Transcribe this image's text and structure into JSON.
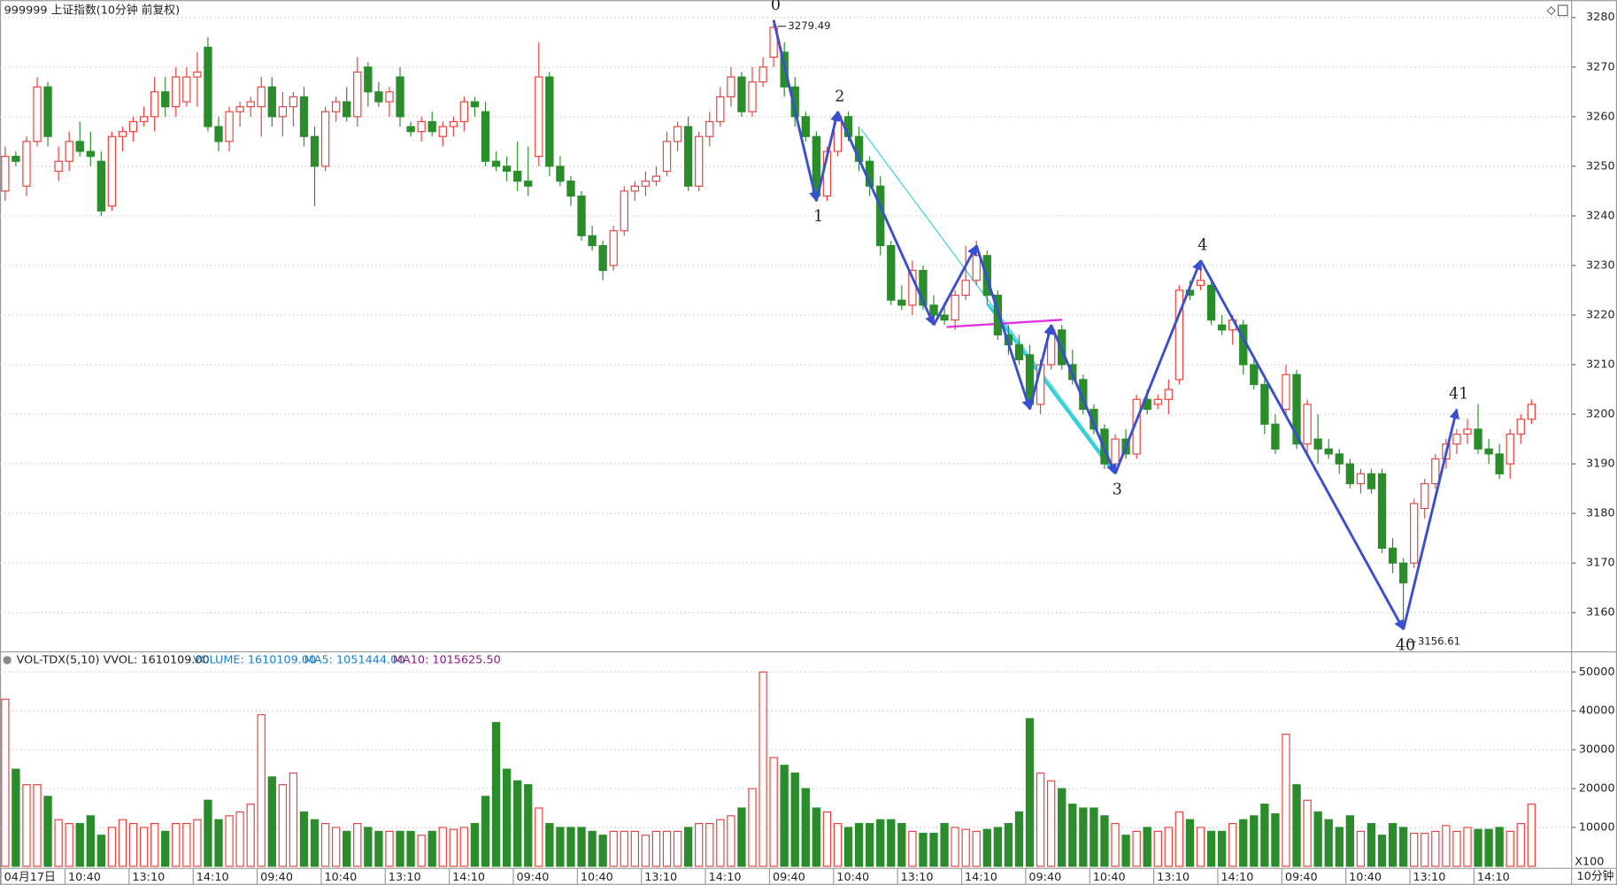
{
  "header": {
    "title": "999999 上证指数(10分钟 前复权)",
    "volume_title": "VOL-TDX(5,10)  VVOL: 1610109.00",
    "volume_value": "VOLUME: 1610109.00",
    "ma5": "MA5: 1051444.00",
    "ma10": "MA10: 1015625.50",
    "unit": "X100",
    "period": "10分钟"
  },
  "chart_data": [
    {
      "type": "candlestick",
      "up_color": "#e8403a",
      "down_color": "#2b8c2b",
      "grid": true,
      "ylim": [
        3152.1,
        3283.5
      ],
      "yticks": [
        3160,
        3170,
        3180,
        3190,
        3200,
        3210,
        3220,
        3230,
        3240,
        3250,
        3260,
        3270,
        3280
      ],
      "ohlc": [
        [
          3245,
          3254,
          3243,
          3252
        ],
        [
          3252,
          3253,
          3250,
          3251
        ],
        [
          3246,
          3256,
          3244,
          3255
        ],
        [
          3255,
          3268,
          3254,
          3266
        ],
        [
          3266,
          3267,
          3254,
          3256
        ],
        [
          3249,
          3254,
          3247,
          3251
        ],
        [
          3251,
          3257,
          3249,
          3255
        ],
        [
          3255,
          3259,
          3252,
          3253
        ],
        [
          3253,
          3257,
          3250,
          3252
        ],
        [
          3251,
          3253,
          3240,
          3241
        ],
        [
          3242,
          3257,
          3241,
          3256
        ],
        [
          3256,
          3258,
          3253,
          3257
        ],
        [
          3257,
          3260,
          3255,
          3259
        ],
        [
          3259,
          3262,
          3258,
          3260
        ],
        [
          3260,
          3268,
          3257,
          3265
        ],
        [
          3265,
          3268,
          3260,
          3262
        ],
        [
          3262,
          3270,
          3260,
          3268
        ],
        [
          3263,
          3270,
          3262,
          3268
        ],
        [
          3268,
          3273,
          3262,
          3269
        ],
        [
          3274,
          3276,
          3257,
          3258
        ],
        [
          3258,
          3260,
          3253,
          3255
        ],
        [
          3255,
          3262,
          3253,
          3261
        ],
        [
          3261,
          3263,
          3258,
          3262
        ],
        [
          3262,
          3264,
          3260,
          3263
        ],
        [
          3262,
          3268,
          3256,
          3266
        ],
        [
          3266,
          3268,
          3258,
          3260
        ],
        [
          3260,
          3265,
          3256,
          3262
        ],
        [
          3262,
          3265,
          3258,
          3264
        ],
        [
          3264,
          3266,
          3254,
          3256
        ],
        [
          3256,
          3258,
          3242,
          3250
        ],
        [
          3250,
          3262,
          3249,
          3261
        ],
        [
          3261,
          3264,
          3259,
          3263
        ],
        [
          3263,
          3266,
          3259,
          3260
        ],
        [
          3260,
          3272,
          3258,
          3269
        ],
        [
          3270,
          3271,
          3262,
          3265
        ],
        [
          3265,
          3267,
          3262,
          3263
        ],
        [
          3263,
          3266,
          3260,
          3265
        ],
        [
          3268,
          3270,
          3258,
          3260
        ],
        [
          3258,
          3259,
          3256,
          3257
        ],
        [
          3257,
          3260,
          3255,
          3259
        ],
        [
          3259,
          3261,
          3256,
          3257
        ],
        [
          3256,
          3259,
          3254,
          3258
        ],
        [
          3258,
          3260,
          3256,
          3259
        ],
        [
          3259,
          3264,
          3257,
          3263
        ],
        [
          3263,
          3264,
          3260,
          3262
        ],
        [
          3261,
          3263,
          3250,
          3251
        ],
        [
          3251,
          3253,
          3249,
          3250
        ],
        [
          3250,
          3252,
          3247,
          3249
        ],
        [
          3249,
          3255,
          3245,
          3247
        ],
        [
          3247,
          3254,
          3244,
          3246
        ],
        [
          3252,
          3275,
          3250,
          3268
        ],
        [
          3268,
          3269,
          3248,
          3250
        ],
        [
          3250,
          3252,
          3246,
          3247
        ],
        [
          3247,
          3248,
          3242,
          3244
        ],
        [
          3244,
          3245,
          3235,
          3236
        ],
        [
          3236,
          3238,
          3233,
          3234
        ],
        [
          3234,
          3235,
          3227,
          3229
        ],
        [
          3230,
          3238,
          3229,
          3237
        ],
        [
          3237,
          3246,
          3236,
          3245
        ],
        [
          3245,
          3247,
          3243,
          3246
        ],
        [
          3246,
          3249,
          3244,
          3247
        ],
        [
          3247,
          3250,
          3246,
          3248
        ],
        [
          3249,
          3257,
          3248,
          3255
        ],
        [
          3255,
          3259,
          3253,
          3258
        ],
        [
          3258,
          3260,
          3245,
          3246
        ],
        [
          3246,
          3257,
          3245,
          3256
        ],
        [
          3256,
          3261,
          3254,
          3259
        ],
        [
          3259,
          3266,
          3258,
          3264
        ],
        [
          3264,
          3270,
          3262,
          3268
        ],
        [
          3268,
          3269,
          3260,
          3261
        ],
        [
          3261,
          3270,
          3260,
          3267
        ],
        [
          3267,
          3272,
          3266,
          3270
        ],
        [
          3272,
          3279.49,
          3270,
          3278
        ],
        [
          3273,
          3275,
          3264,
          3266
        ],
        [
          3266,
          3268,
          3258,
          3260
        ],
        [
          3260,
          3261,
          3255,
          3256
        ],
        [
          3256,
          3257,
          3243,
          3244
        ],
        [
          3244,
          3254,
          3243,
          3253
        ],
        [
          3253,
          3261,
          3252,
          3260
        ],
        [
          3260,
          3261,
          3255,
          3256
        ],
        [
          3256,
          3258,
          3249,
          3251
        ],
        [
          3251,
          3252,
          3244,
          3246
        ],
        [
          3246,
          3248,
          3232,
          3234
        ],
        [
          3234,
          3235,
          3222,
          3223
        ],
        [
          3223,
          3226,
          3221,
          3222
        ],
        [
          3222,
          3231,
          3220,
          3229
        ],
        [
          3229,
          3230,
          3221,
          3222
        ],
        [
          3222,
          3224,
          3219,
          3220
        ],
        [
          3220,
          3222,
          3218,
          3219
        ],
        [
          3219,
          3225,
          3217,
          3224
        ],
        [
          3224,
          3234,
          3223,
          3227
        ],
        [
          3227,
          3235,
          3226,
          3232
        ],
        [
          3232,
          3233,
          3222,
          3224
        ],
        [
          3224,
          3225,
          3215,
          3216
        ],
        [
          3216,
          3218,
          3212,
          3214
        ],
        [
          3214,
          3216,
          3210,
          3211
        ],
        [
          3212,
          3214,
          3201,
          3202
        ],
        [
          3202,
          3211,
          3200,
          3210
        ],
        [
          3210,
          3218,
          3209,
          3217
        ],
        [
          3217,
          3218,
          3209,
          3210
        ],
        [
          3210,
          3213,
          3206,
          3207
        ],
        [
          3207,
          3208,
          3200,
          3201
        ],
        [
          3201,
          3202,
          3196,
          3197
        ],
        [
          3197,
          3198,
          3189,
          3190
        ],
        [
          3190,
          3196,
          3188,
          3195
        ],
        [
          3195,
          3197,
          3191,
          3192
        ],
        [
          3192,
          3204,
          3191,
          3203
        ],
        [
          3203,
          3205,
          3200,
          3201
        ],
        [
          3202,
          3204,
          3201,
          3203
        ],
        [
          3203,
          3207,
          3200,
          3205
        ],
        [
          3207,
          3226,
          3206,
          3225
        ],
        [
          3225,
          3227,
          3223,
          3224
        ],
        [
          3226,
          3231,
          3225,
          3227
        ],
        [
          3226,
          3227,
          3218,
          3219
        ],
        [
          3218,
          3220,
          3216,
          3217
        ],
        [
          3217,
          3220,
          3214,
          3219
        ],
        [
          3218,
          3219,
          3208,
          3210
        ],
        [
          3210,
          3211,
          3205,
          3206
        ],
        [
          3206,
          3207,
          3196,
          3198
        ],
        [
          3198,
          3200,
          3192,
          3193
        ],
        [
          3201,
          3210,
          3200,
          3208
        ],
        [
          3208,
          3209,
          3193,
          3194
        ],
        [
          3194,
          3203,
          3192,
          3202
        ],
        [
          3195,
          3200,
          3190,
          3193
        ],
        [
          3193,
          3195,
          3191,
          3192
        ],
        [
          3192,
          3193,
          3188,
          3190
        ],
        [
          3190,
          3191,
          3185,
          3186
        ],
        [
          3186,
          3189,
          3184,
          3188
        ],
        [
          3188,
          3189,
          3184,
          3185
        ],
        [
          3188,
          3189,
          3172,
          3173
        ],
        [
          3173,
          3175,
          3168,
          3170
        ],
        [
          3170,
          3171,
          3156.61,
          3166
        ],
        [
          3170,
          3183,
          3169,
          3182
        ],
        [
          3181,
          3187,
          3179,
          3186
        ],
        [
          3186,
          3192,
          3185,
          3191
        ],
        [
          3191,
          3195,
          3189,
          3194
        ],
        [
          3194,
          3197,
          3192,
          3196
        ],
        [
          3196,
          3199,
          3194,
          3197
        ],
        [
          3197,
          3202,
          3192,
          3193
        ],
        [
          3193,
          3195,
          3190,
          3192
        ],
        [
          3192,
          3194,
          3187,
          3188
        ],
        [
          3190,
          3197,
          3187,
          3196
        ],
        [
          3196,
          3200,
          3194,
          3199
        ],
        [
          3199,
          3203,
          3198,
          3202
        ]
      ],
      "wave_color": "#3a4fd0",
      "waves": [
        {
          "label": "0",
          "index": 72,
          "price": 3279.49,
          "show_price": true
        },
        {
          "label": "1",
          "index": 76,
          "price": 3243
        },
        {
          "label": "2",
          "index": 78,
          "price": 3261
        },
        {
          "label": null,
          "index": 87,
          "price": 3218
        },
        {
          "label": null,
          "index": 91,
          "price": 3234
        },
        {
          "label": null,
          "index": 96,
          "price": 3201
        },
        {
          "label": null,
          "index": 98,
          "price": 3218
        },
        {
          "label": "3",
          "index": 104,
          "price": 3188
        },
        {
          "label": "4",
          "index": 112,
          "price": 3231
        },
        {
          "label": "40",
          "index": 131,
          "price": 3156.61,
          "show_price": true
        },
        {
          "label": "41",
          "index": 136,
          "price": 3201
        }
      ]
    },
    {
      "type": "bar",
      "grid": true,
      "ylim": [
        0,
        54400
      ],
      "yticks": [
        10000,
        20000,
        30000,
        40000,
        50000
      ],
      "values": [
        43000,
        25000,
        21000,
        21000,
        18000,
        12000,
        11000,
        11000,
        13000,
        8000,
        10000,
        12000,
        11000,
        10000,
        11000,
        9000,
        11000,
        11000,
        12000,
        17000,
        12000,
        13000,
        14000,
        16000,
        39000,
        23000,
        21000,
        24000,
        14000,
        12000,
        11000,
        10000,
        9000,
        11000,
        10000,
        9000,
        9000,
        9000,
        9000,
        8000,
        9000,
        10000,
        9500,
        10000,
        11000,
        18000,
        37000,
        25000,
        22000,
        21000,
        15000,
        11000,
        10000,
        10000,
        10000,
        9000,
        8000,
        9000,
        9000,
        9000,
        8000,
        9000,
        9000,
        9000,
        10000,
        11000,
        11000,
        12000,
        13000,
        15000,
        20000,
        50000,
        28000,
        26000,
        24000,
        20000,
        15000,
        14000,
        11000,
        10000,
        11000,
        11000,
        12000,
        12000,
        11000,
        9000,
        8500,
        8500,
        11000,
        10000,
        9500,
        9000,
        9500,
        10000,
        11000,
        14000,
        38000,
        24000,
        22000,
        20000,
        16000,
        15000,
        15000,
        13000,
        11000,
        8000,
        9000,
        10000,
        9000,
        10000,
        14000,
        12000,
        10000,
        9000,
        9000,
        11000,
        12000,
        13000,
        16000,
        13500,
        34000,
        21000,
        17000,
        14000,
        12000,
        10000,
        13000,
        9000,
        11000,
        8000,
        11000,
        10000,
        8500,
        8500,
        9000,
        10500,
        9000,
        10000,
        9500,
        9500,
        10000,
        9000,
        11000,
        16000
      ],
      "xticks": [
        {
          "value": 0,
          "label": "04月17日"
        },
        {
          "value": 6,
          "label": "10:40"
        },
        {
          "value": 12,
          "label": "13:10"
        },
        {
          "value": 18,
          "label": "14:10"
        },
        {
          "value": 24,
          "label": "09:40"
        },
        {
          "value": 30,
          "label": "10:40"
        },
        {
          "value": 36,
          "label": "13:10"
        },
        {
          "value": 42,
          "label": "14:10"
        },
        {
          "value": 48,
          "label": "09:40"
        },
        {
          "value": 54,
          "label": "10:40"
        },
        {
          "value": 60,
          "label": "13:10"
        },
        {
          "value": 66,
          "label": "14:10"
        },
        {
          "value": 72,
          "label": "09:40"
        },
        {
          "value": 78,
          "label": "10:40"
        },
        {
          "value": 84,
          "label": "13:10"
        },
        {
          "value": 90,
          "label": "14:10"
        },
        {
          "value": 96,
          "label": "09:40"
        },
        {
          "value": 102,
          "label": "10:40"
        },
        {
          "value": 108,
          "label": "13:10"
        },
        {
          "value": 114,
          "label": "14:10"
        },
        {
          "value": 120,
          "label": "09:40"
        },
        {
          "value": 126,
          "label": "10:40"
        },
        {
          "value": 132,
          "label": "13:10"
        },
        {
          "value": 138,
          "label": "14:10"
        }
      ]
    }
  ]
}
